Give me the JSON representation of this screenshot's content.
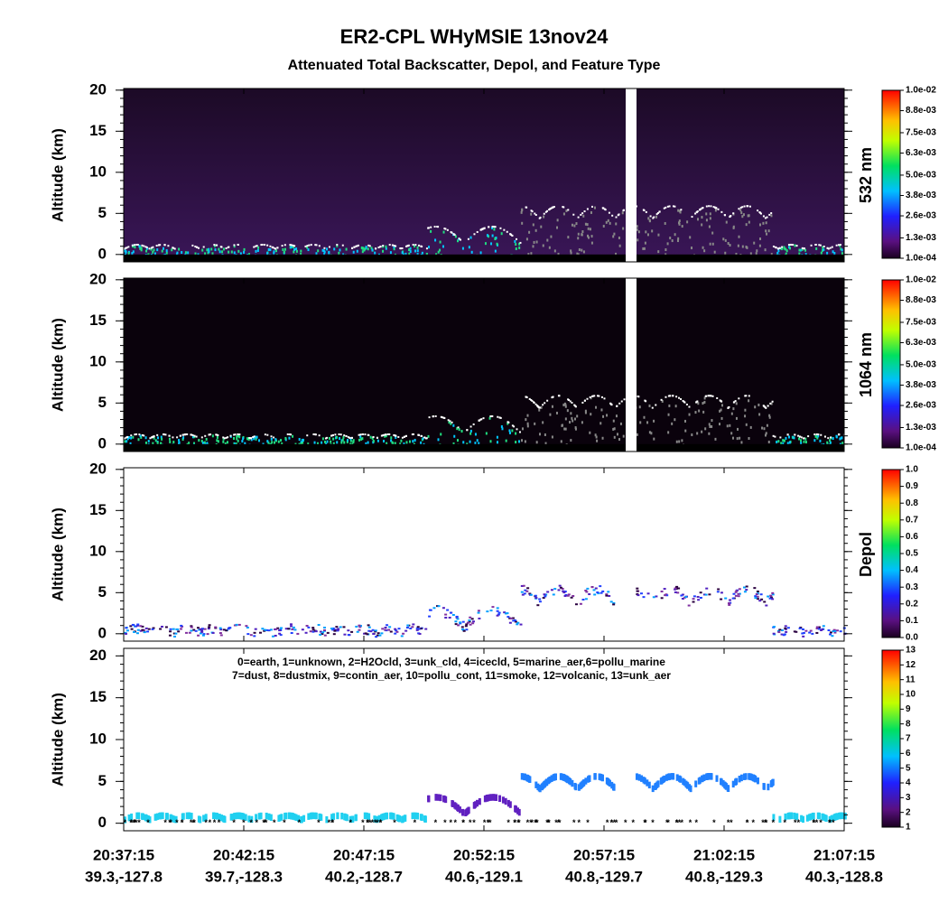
{
  "chart_data": [
    {
      "type": "heatmap",
      "title": "ER2-CPL WHyMSIE 13nov24",
      "subtitle": "Attenuated Total Backscatter, Depol, and Feature Type",
      "ylabel": "Altitude (km)",
      "ylim": [
        -0.9,
        20.2
      ],
      "yticks": [
        0,
        5,
        10,
        15,
        20
      ],
      "colorbar_label": "532 nm",
      "clim": [
        0.0001,
        0.01
      ],
      "cticks": [
        {
          "value": 0.01,
          "label": "1.0e-02"
        },
        {
          "value": 0.0088,
          "label": "8.8e-03"
        },
        {
          "value": 0.0075,
          "label": "7.5e-03"
        },
        {
          "value": 0.0063,
          "label": "6.3e-03"
        },
        {
          "value": 0.005,
          "label": "5.0e-03"
        },
        {
          "value": 0.0038,
          "label": "3.8e-03"
        },
        {
          "value": 0.0026,
          "label": "2.6e-03"
        },
        {
          "value": 0.0013,
          "label": "1.3e-03"
        },
        {
          "value": 0.0001,
          "label": "1.0e-04"
        }
      ]
    },
    {
      "type": "heatmap",
      "ylabel": "Altitude (km)",
      "ylim": [
        -0.9,
        20.2
      ],
      "yticks": [
        0,
        5,
        10,
        15,
        20
      ],
      "colorbar_label": "1064 nm",
      "clim": [
        0.0001,
        0.01
      ],
      "cticks": [
        {
          "value": 0.01,
          "label": "1.0e-02"
        },
        {
          "value": 0.0088,
          "label": "8.8e-03"
        },
        {
          "value": 0.0075,
          "label": "7.5e-03"
        },
        {
          "value": 0.0063,
          "label": "6.3e-03"
        },
        {
          "value": 0.005,
          "label": "5.0e-03"
        },
        {
          "value": 0.0038,
          "label": "3.8e-03"
        },
        {
          "value": 0.0026,
          "label": "2.6e-03"
        },
        {
          "value": 0.0013,
          "label": "1.3e-03"
        },
        {
          "value": 0.0001,
          "label": "1.0e-04"
        }
      ]
    },
    {
      "type": "depol",
      "ylabel": "Altitude (km)",
      "ylim": [
        -0.9,
        20.2
      ],
      "yticks": [
        0,
        5,
        10,
        15,
        20
      ],
      "colorbar_label": "Depol",
      "clim": [
        0,
        1
      ],
      "cticks": [
        {
          "value": 1,
          "label": "1.0"
        },
        0.9,
        0.8,
        0.7,
        0.6,
        0.5,
        0.4,
        0.3,
        0.2,
        0.1,
        {
          "value": 0,
          "label": "0.0"
        }
      ]
    },
    {
      "type": "feature",
      "ylabel": "Altitude (km)",
      "ylim": [
        -0.9,
        20.9
      ],
      "yticks": [
        0,
        5,
        10,
        15,
        20
      ],
      "clim": [
        1,
        13
      ],
      "cticks": [
        13,
        12,
        11,
        10,
        9,
        8,
        7,
        6,
        5,
        4,
        3,
        2,
        1
      ],
      "annotations": [
        "0=earth, 1=unknown, 2=H2Ocld, 3=unk_cld, 4=icecld, 5=marine_aer,6=pollu_marine",
        "7=dust, 8=dustmix, 9=contin_aer, 10=pollu_cont, 11=smoke, 12=volcanic, 13=unk_aer"
      ],
      "categories": [
        "20:37:15",
        "20:42:15",
        "20:47:15",
        "20:52:15",
        "20:57:15",
        "21:02:15",
        "21:07:15"
      ],
      "locations": [
        "39.3,-127.8",
        "39.7,-128.3",
        "40.2,-128.7",
        "40.6,-129.1",
        "40.8,-129.7",
        "40.8,-129.3",
        "40.3,-128.8"
      ]
    }
  ]
}
